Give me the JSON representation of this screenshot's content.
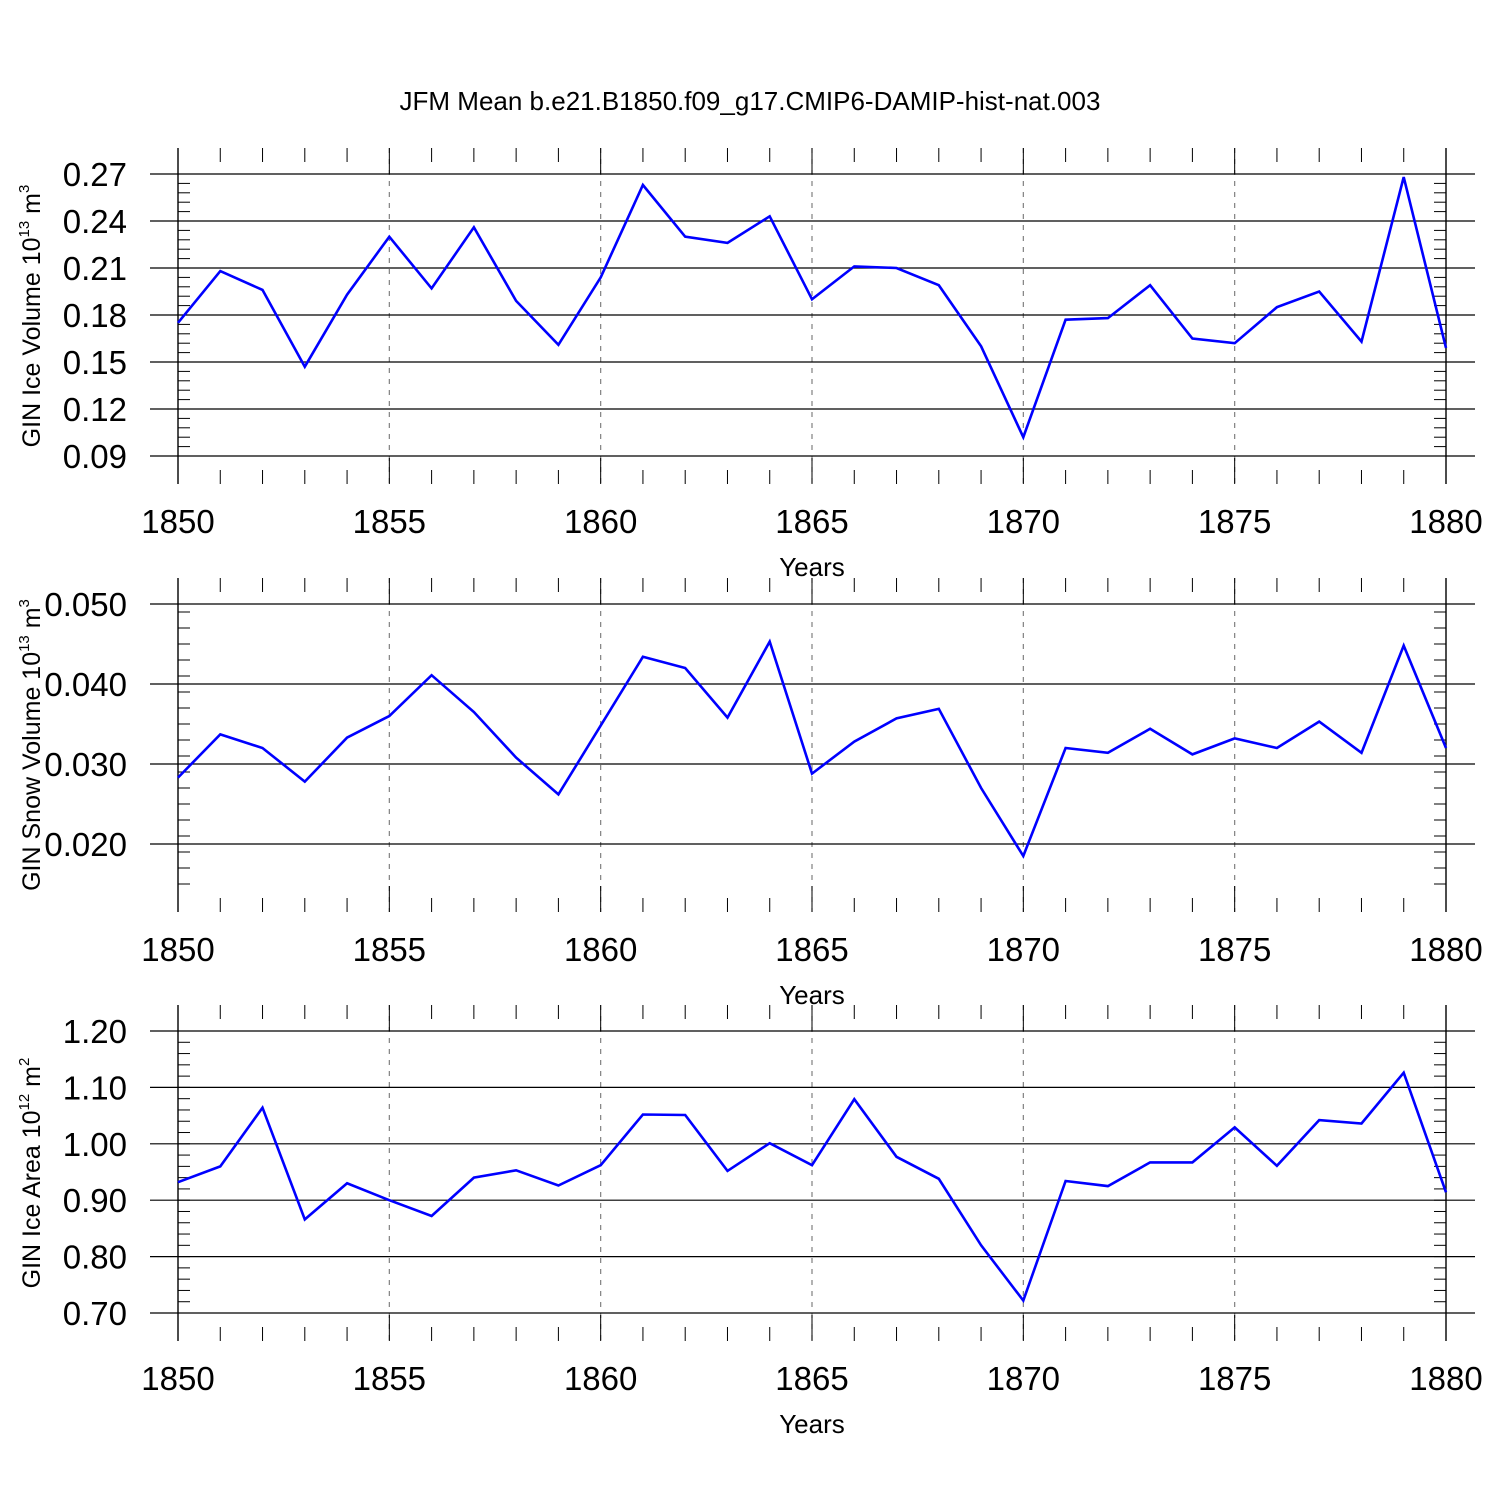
{
  "title": "JFM Mean b.e21.B1850.f09_g17.CMIP6-DAMIP-hist-nat.003",
  "colors": {
    "line": "#0000ff",
    "axis": "#000000",
    "grid": "#808080",
    "background": "#ffffff"
  },
  "chart_data": [
    {
      "type": "line",
      "xlabel": "Years",
      "ylabel": {
        "text": "GIN Ice Volume 10",
        "exp": "13",
        "unit": " m",
        "unit_exp": "3"
      },
      "xlim": [
        1850,
        1880
      ],
      "ylim": [
        0.09,
        0.27
      ],
      "x_ticks": [
        1850,
        1855,
        1860,
        1865,
        1870,
        1875,
        1880
      ],
      "x_tick_labels": [
        "1850",
        "1855",
        "1860",
        "1865",
        "1870",
        "1875",
        "1880"
      ],
      "y_ticks": [
        0.09,
        0.12,
        0.15,
        0.18,
        0.21,
        0.24,
        0.27
      ],
      "y_tick_labels": [
        "0.09",
        "0.12",
        "0.15",
        "0.18",
        "0.21",
        "0.24",
        "0.27"
      ],
      "grid": "vertical dashed at major x ticks",
      "x": [
        1850,
        1851,
        1852,
        1853,
        1854,
        1855,
        1856,
        1857,
        1858,
        1859,
        1860,
        1861,
        1862,
        1863,
        1864,
        1865,
        1866,
        1867,
        1868,
        1869,
        1870,
        1871,
        1872,
        1873,
        1874,
        1875,
        1876,
        1877,
        1878,
        1879,
        1880
      ],
      "y": [
        0.175,
        0.208,
        0.196,
        0.147,
        0.193,
        0.23,
        0.197,
        0.236,
        0.189,
        0.161,
        0.204,
        0.263,
        0.23,
        0.226,
        0.243,
        0.19,
        0.211,
        0.21,
        0.199,
        0.16,
        0.102,
        0.177,
        0.178,
        0.199,
        0.165,
        0.162,
        0.185,
        0.195,
        0.163,
        0.268,
        0.159
      ]
    },
    {
      "type": "line",
      "xlabel": "Years",
      "ylabel": {
        "text": "GIN Snow Volume 10",
        "exp": "13",
        "unit": " m",
        "unit_exp": "3"
      },
      "xlim": [
        1850,
        1880
      ],
      "ylim": [
        0.015,
        0.05
      ],
      "x_ticks": [
        1850,
        1855,
        1860,
        1865,
        1870,
        1875,
        1880
      ],
      "x_tick_labels": [
        "1850",
        "1855",
        "1860",
        "1865",
        "1870",
        "1875",
        "1880"
      ],
      "y_ticks": [
        0.02,
        0.03,
        0.04,
        0.05
      ],
      "y_tick_labels": [
        "0.020",
        "0.030",
        "0.040",
        "0.050"
      ],
      "grid": "vertical dashed at major x ticks",
      "x": [
        1850,
        1851,
        1852,
        1853,
        1854,
        1855,
        1856,
        1857,
        1858,
        1859,
        1860,
        1861,
        1862,
        1863,
        1864,
        1865,
        1866,
        1867,
        1868,
        1869,
        1870,
        1871,
        1872,
        1873,
        1874,
        1875,
        1876,
        1877,
        1878,
        1879,
        1880
      ],
      "y": [
        0.0283,
        0.0337,
        0.032,
        0.0278,
        0.0333,
        0.036,
        0.0411,
        0.0365,
        0.0308,
        0.0262,
        0.0348,
        0.0434,
        0.042,
        0.0358,
        0.0453,
        0.0288,
        0.0328,
        0.0357,
        0.0369,
        0.027,
        0.0185,
        0.032,
        0.0314,
        0.0344,
        0.0312,
        0.0332,
        0.032,
        0.0353,
        0.0314,
        0.0448,
        0.032
      ]
    },
    {
      "type": "line",
      "xlabel": "Years",
      "ylabel": {
        "text": "GIN Ice Area 10",
        "exp": "12",
        "unit": " m",
        "unit_exp": "2"
      },
      "xlim": [
        1850,
        1880
      ],
      "ylim": [
        0.7,
        1.2
      ],
      "x_ticks": [
        1850,
        1855,
        1860,
        1865,
        1870,
        1875,
        1880
      ],
      "x_tick_labels": [
        "1850",
        "1855",
        "1860",
        "1865",
        "1870",
        "1875",
        "1880"
      ],
      "y_ticks": [
        0.7,
        0.8,
        0.9,
        1.0,
        1.1,
        1.2
      ],
      "y_tick_labels": [
        "0.70",
        "0.80",
        "0.90",
        "1.00",
        "1.10",
        "1.20"
      ],
      "grid": "vertical dashed at major x ticks",
      "x": [
        1850,
        1851,
        1852,
        1853,
        1854,
        1855,
        1856,
        1857,
        1858,
        1859,
        1860,
        1861,
        1862,
        1863,
        1864,
        1865,
        1866,
        1867,
        1868,
        1869,
        1870,
        1871,
        1872,
        1873,
        1874,
        1875,
        1876,
        1877,
        1878,
        1879,
        1880
      ],
      "y": [
        0.932,
        0.96,
        1.064,
        0.866,
        0.93,
        0.9,
        0.872,
        0.94,
        0.953,
        0.926,
        0.962,
        1.052,
        1.051,
        0.952,
        1.001,
        0.962,
        1.079,
        0.977,
        0.938,
        0.82,
        0.722,
        0.934,
        0.925,
        0.967,
        0.967,
        1.029,
        0.961,
        1.042,
        1.036,
        1.126,
        0.914
      ]
    }
  ]
}
